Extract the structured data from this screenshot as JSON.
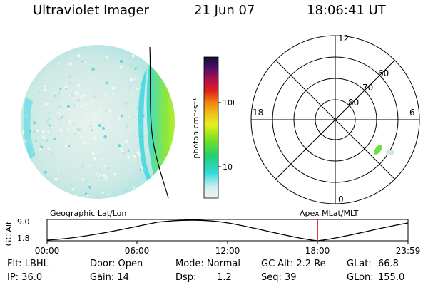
{
  "header": {
    "instrument": "Ultraviolet Imager",
    "date": "21 Jun 07",
    "time": "18:06:41 UT"
  },
  "colorbar": {
    "label": "photon cm⁻²s⁻¹",
    "ticks": [
      "100",
      "10"
    ]
  },
  "polar": {
    "lat_labels": [
      "80",
      "70",
      "60"
    ],
    "mlt_labels": {
      "top": "12",
      "bottom": "0",
      "left": "18",
      "right": "6"
    }
  },
  "timeline": {
    "ylabel": "GC Alt",
    "y_ticks": [
      "9.0",
      "1.8"
    ],
    "left_title": "Geographic Lat/Lon",
    "right_title": "Apex MLat/MLT",
    "x_ticks": [
      "00:00",
      "06:00",
      "12:00",
      "18:00",
      "23:59"
    ]
  },
  "info": {
    "filter": "Flt: LBHL",
    "ip": "IP: 36.0",
    "door": "Door: Open",
    "gain": "Gain: 14",
    "mode": "Mode: Normal",
    "dsp_label": "Dsp:",
    "dsp_value": "1.2",
    "gc_alt": "GC Alt: 2.2 Re",
    "seq": "Seq: 39",
    "glat_label": "GLat:",
    "glat_value": "66.8",
    "glon_label": "GLon:",
    "glon_value": "155.0"
  },
  "colors": {
    "grid": "#000000",
    "marker": "#cc0000",
    "aurora_green": "#7fe030",
    "cyan": "#30d8e0"
  }
}
